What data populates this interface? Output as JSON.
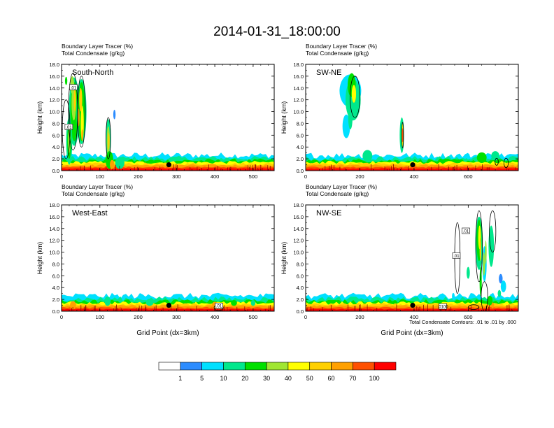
{
  "chart_data": {
    "type": "heatmap",
    "title": "2014-01-31_18:00:00",
    "field_labels": [
      "Boundary Layer Tracer   (%)",
      "Total Condensate   (g/kg)"
    ],
    "ylabel": "Height (km)",
    "xlabel": "Grid Point (dx=3km)",
    "ylim": [
      0,
      18
    ],
    "yticks": [
      "0.0",
      "2.0",
      "4.0",
      "6.0",
      "8.0",
      "10.0",
      "12.0",
      "14.0",
      "16.0",
      "18.0"
    ],
    "contour_note": "Total Condensate Contours: .01 to .01 by .000",
    "colorbar": {
      "boundaries": [
        "1",
        "5",
        "10",
        "20",
        "30",
        "40",
        "50",
        "60",
        "70",
        "100"
      ],
      "colors": [
        "#ffffff",
        "#2c8cff",
        "#00e0ff",
        "#00e88c",
        "#00e000",
        "#a0e632",
        "#ffff00",
        "#ffd000",
        "#ffa000",
        "#ff5000",
        "#ff0000"
      ]
    },
    "panels": [
      {
        "name": "South-North",
        "xlim": [
          0,
          555
        ],
        "xticks": [
          "0",
          "100",
          "200",
          "300",
          "400",
          "500"
        ],
        "marker_x": 280,
        "contour_labels": [
          {
            "x": 30,
            "y": 14.0,
            "text": ".01"
          },
          {
            "x": 18,
            "y": 7.3,
            "text": ".01"
          }
        ]
      },
      {
        "name": "SW-NE",
        "xlim": [
          0,
          785
        ],
        "xticks": [
          "0",
          "200",
          "400",
          "600"
        ],
        "marker_x": 395,
        "contour_labels": []
      },
      {
        "name": "West-East",
        "xlim": [
          0,
          555
        ],
        "xticks": [
          "0",
          "100",
          "200",
          "300",
          "400",
          "500"
        ],
        "marker_x": 280,
        "contour_labels": [
          {
            "x": 410,
            "y": 0.8,
            "text": ".01"
          }
        ]
      },
      {
        "name": "NW-SE",
        "xlim": [
          0,
          785
        ],
        "xticks": [
          "0",
          "200",
          "400",
          "600"
        ],
        "marker_x": 395,
        "contour_labels": [
          {
            "x": 590,
            "y": 13.5,
            "text": ".01"
          },
          {
            "x": 555,
            "y": 9.3,
            "text": ".01"
          },
          {
            "x": 505,
            "y": 0.7,
            "text": ".0100"
          }
        ]
      }
    ]
  }
}
